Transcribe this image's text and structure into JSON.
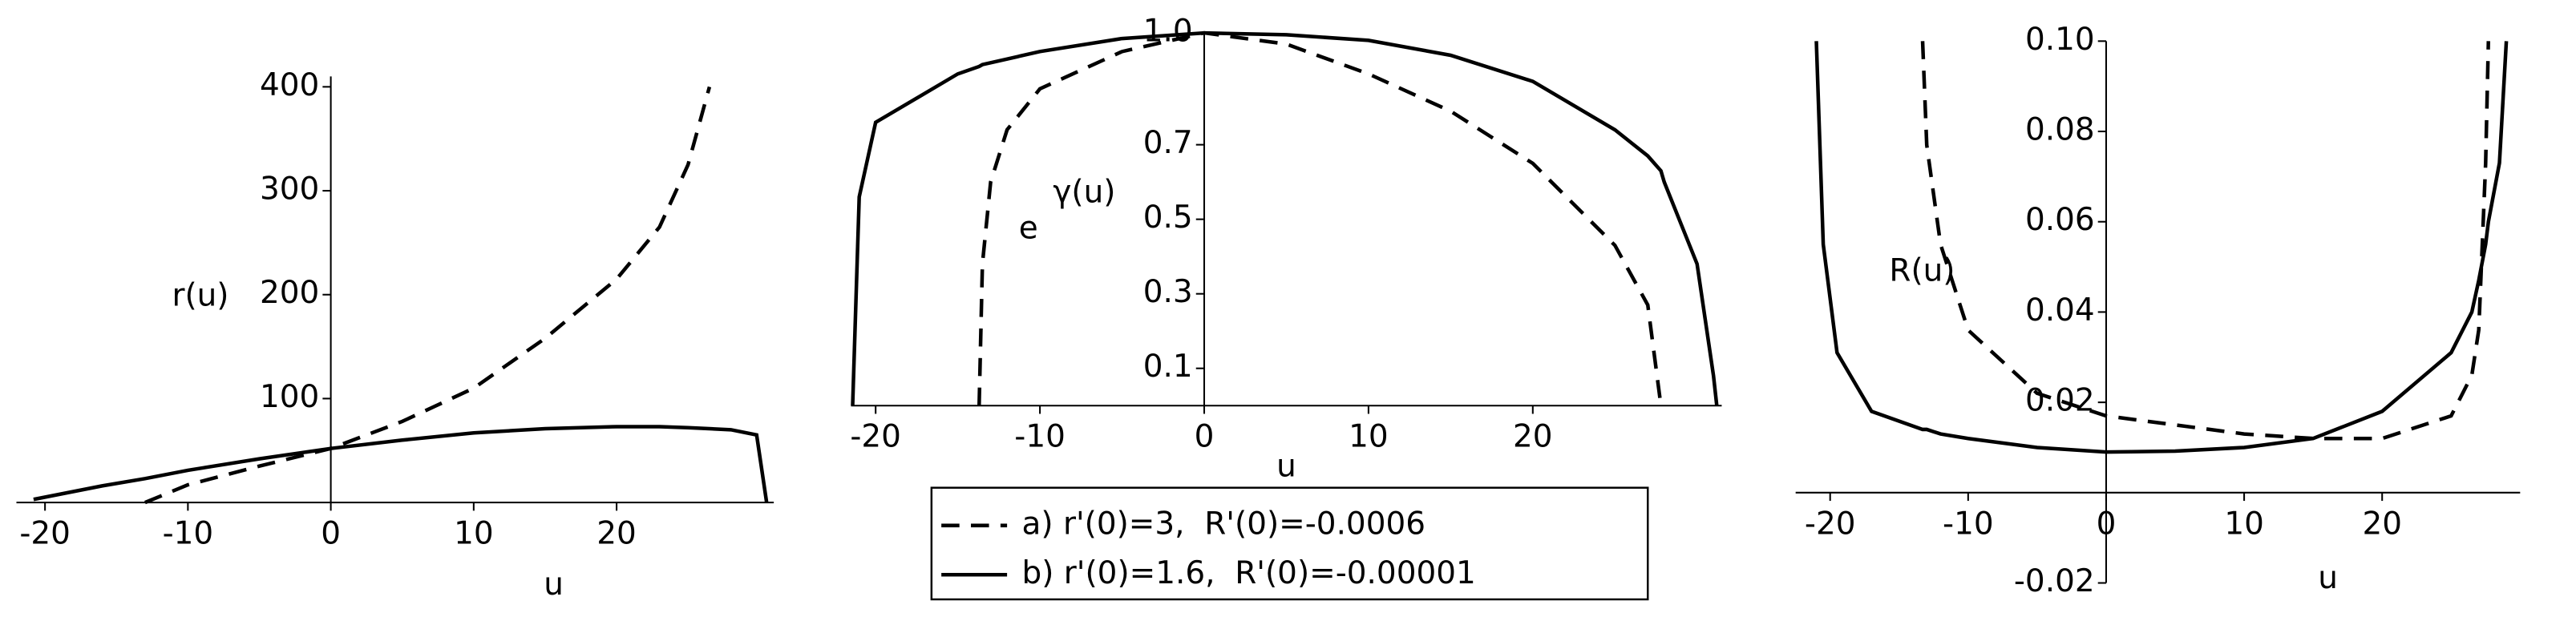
{
  "chart_data": [
    {
      "type": "line",
      "xlabel": "u",
      "ylabel": "r(u)",
      "x": [
        -20.8,
        -16,
        -13,
        -10,
        -5,
        0,
        5,
        10,
        15,
        20,
        23,
        25,
        26.5,
        28,
        29.8,
        30.5
      ],
      "series": [
        {
          "color": "#000000",
          "linestyle": "dashed",
          "values": [
            null,
            null,
            0,
            17,
            35,
            52,
            78,
            110,
            158,
            215,
            265,
            325,
            400,
            null,
            null,
            null
          ]
        },
        {
          "color": "#000000",
          "linestyle": "solid",
          "values": [
            3,
            16,
            23,
            31,
            42,
            52,
            60,
            67,
            71,
            73,
            73,
            72,
            71,
            70,
            65,
            0
          ]
        }
      ],
      "xlim": [
        -22,
        31
      ],
      "ylim": [
        0,
        410
      ],
      "xticks": [
        -20,
        -10,
        0,
        10,
        20
      ],
      "yticks": [
        100,
        200,
        300,
        400
      ]
    },
    {
      "type": "line",
      "xlabel": "u",
      "ylabel_base": "e",
      "ylabel_exp": "γ(u)",
      "x": [
        -21.4,
        -21,
        -20,
        -15,
        -13.7,
        -13.5,
        -13,
        -12,
        -10,
        -5,
        0,
        5,
        10,
        15,
        20,
        25,
        27,
        27.8,
        28,
        30,
        30.5,
        31,
        31.2
      ],
      "series": [
        {
          "name": "a) r'(0)=3,  R'(0)=-0.0006",
          "color": "#000000",
          "linestyle": "dashed",
          "values": [
            null,
            null,
            null,
            null,
            0,
            0.38,
            0.6,
            0.74,
            0.85,
            0.95,
            1,
            0.97,
            0.89,
            0.79,
            0.65,
            0.43,
            0.27,
            0,
            null,
            null,
            null,
            null,
            null
          ]
        },
        {
          "name": "b) r'(0)=1.6,  R'(0)=-0.00001",
          "color": "#000000",
          "linestyle": "solid",
          "values": [
            0,
            0.56,
            0.76,
            0.89,
            0.91,
            0.915,
            0.92,
            0.93,
            0.95,
            0.985,
            1,
            0.995,
            0.98,
            0.94,
            0.87,
            0.74,
            0.67,
            0.63,
            0.6,
            0.38,
            0.23,
            0.08,
            0
          ]
        }
      ],
      "xlim": [
        -21.5,
        31.5
      ],
      "ylim": [
        0,
        1
      ],
      "xticks": [
        -20,
        -10,
        0,
        10,
        20
      ],
      "yticks": [
        0.1,
        0.3,
        0.5,
        0.7,
        {
          "value": 1,
          "label": "1.0"
        }
      ]
    },
    {
      "type": "line",
      "xlabel": "u",
      "ylabel": "R(u)",
      "x": [
        -21,
        -20.5,
        -19.5,
        -17,
        -13.3,
        -13,
        -12,
        -10,
        -5,
        0,
        5,
        10,
        15,
        20,
        25,
        26.5,
        27,
        27.5,
        27.7,
        28.5,
        29
      ],
      "series": [
        {
          "color": "#000000",
          "linestyle": "dashed",
          "values": [
            null,
            null,
            null,
            null,
            0.1,
            0.077,
            0.055,
            0.036,
            0.022,
            0.017,
            0.015,
            0.013,
            0.012,
            0.012,
            0.017,
            0.026,
            0.036,
            0.073,
            0.1,
            null,
            null
          ]
        },
        {
          "color": "#000000",
          "linestyle": "solid",
          "values": [
            0.1,
            0.055,
            0.031,
            0.018,
            0.014,
            0.014,
            0.013,
            0.012,
            0.01,
            0.009,
            0.0092,
            0.01,
            0.012,
            0.018,
            0.031,
            0.04,
            0.047,
            0.055,
            0.06,
            0.073,
            0.1
          ]
        }
      ],
      "xlim": [
        -22.5,
        30
      ],
      "ylim": [
        -0.02,
        0.1
      ],
      "xticks": [
        -20,
        -10,
        0,
        10,
        20
      ],
      "yticks": [
        -0.02,
        0.02,
        0.04,
        0.06,
        0.08,
        {
          "value": 0.1,
          "label": "0.10"
        }
      ]
    }
  ]
}
